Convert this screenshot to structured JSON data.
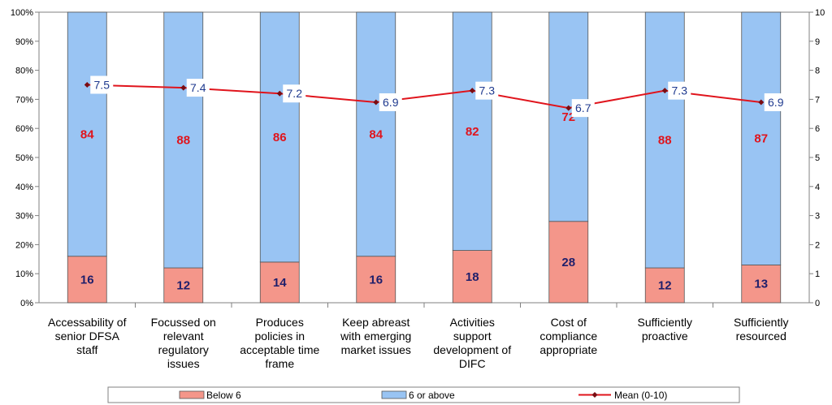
{
  "chart_data": {
    "type": "bar",
    "stacked": true,
    "categories": [
      [
        "Accessability of",
        "senior DFSA",
        "staff"
      ],
      [
        "Focussed on",
        "relevant",
        "regulatory",
        "issues"
      ],
      [
        "Produces",
        "policies in",
        "acceptable time",
        "frame"
      ],
      [
        "Keep abreast",
        "with emerging",
        "market issues"
      ],
      [
        "Activities",
        "support",
        "development of",
        "DIFC"
      ],
      [
        "Cost of",
        "compliance",
        "appropriate"
      ],
      [
        "Sufficiently",
        "proactive"
      ],
      [
        "Sufficiently",
        "resourced"
      ]
    ],
    "series": [
      {
        "name": "Below 6",
        "values": [
          16,
          12,
          14,
          16,
          18,
          28,
          12,
          13
        ],
        "color": "#f4968a",
        "label_color": "#1f1f6b"
      },
      {
        "name": "6 or above",
        "values": [
          84,
          88,
          86,
          84,
          82,
          72,
          88,
          87
        ],
        "color": "#99c4f3",
        "label_color": "#e0141c"
      }
    ],
    "line_series": {
      "name": "Mean (0-10)",
      "axis": "right",
      "values": [
        7.5,
        7.4,
        7.2,
        6.9,
        7.3,
        6.7,
        7.3,
        6.9
      ],
      "color": "#e0141c",
      "label_color": "#1f3a8f"
    },
    "ylim": [
      0,
      100
    ],
    "y_ticks": [
      "0%",
      "10%",
      "20%",
      "30%",
      "40%",
      "50%",
      "60%",
      "70%",
      "80%",
      "90%",
      "100%"
    ],
    "y2lim": [
      0,
      10
    ],
    "y2_ticks": [
      "0",
      "1",
      "2",
      "3",
      "4",
      "5",
      "6",
      "7",
      "8",
      "9",
      "10"
    ],
    "legend": "bottom",
    "grid": false
  }
}
